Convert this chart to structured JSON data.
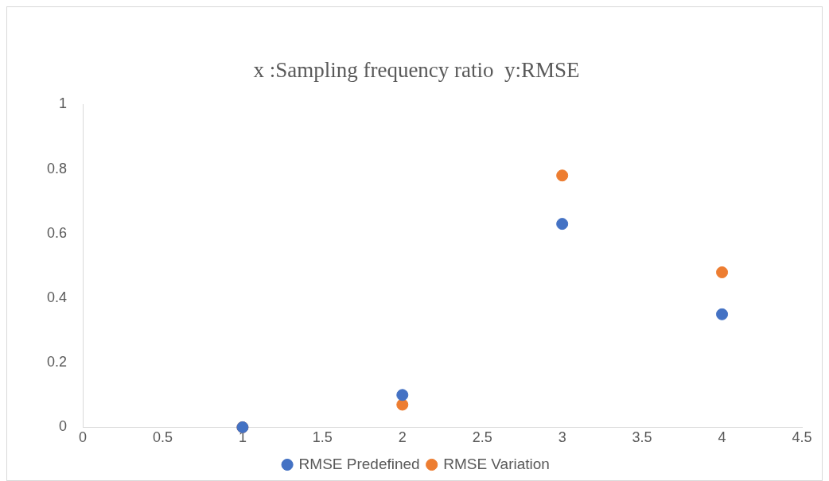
{
  "chart_data": {
    "type": "scatter",
    "title": "x :Sampling frequency ratio  y:RMSE",
    "x": [
      1,
      2,
      3,
      4
    ],
    "series": [
      {
        "name": "RMSE Predefined",
        "color": "#4472c4",
        "values": [
          0,
          0.1,
          0.63,
          0.35
        ]
      },
      {
        "name": "RMSE Variation",
        "color": "#ed7d31",
        "values": [
          0,
          0.07,
          0.78,
          0.48
        ]
      }
    ],
    "xlim": [
      0,
      4.5
    ],
    "xticks": [
      0,
      0.5,
      1,
      1.5,
      2,
      2.5,
      3,
      3.5,
      4,
      4.5
    ],
    "ylim": [
      0,
      1
    ],
    "yticks": [
      0,
      0.2,
      0.4,
      0.6,
      0.8,
      1
    ],
    "grid": false,
    "legend": "bottom",
    "marker": "circle"
  }
}
